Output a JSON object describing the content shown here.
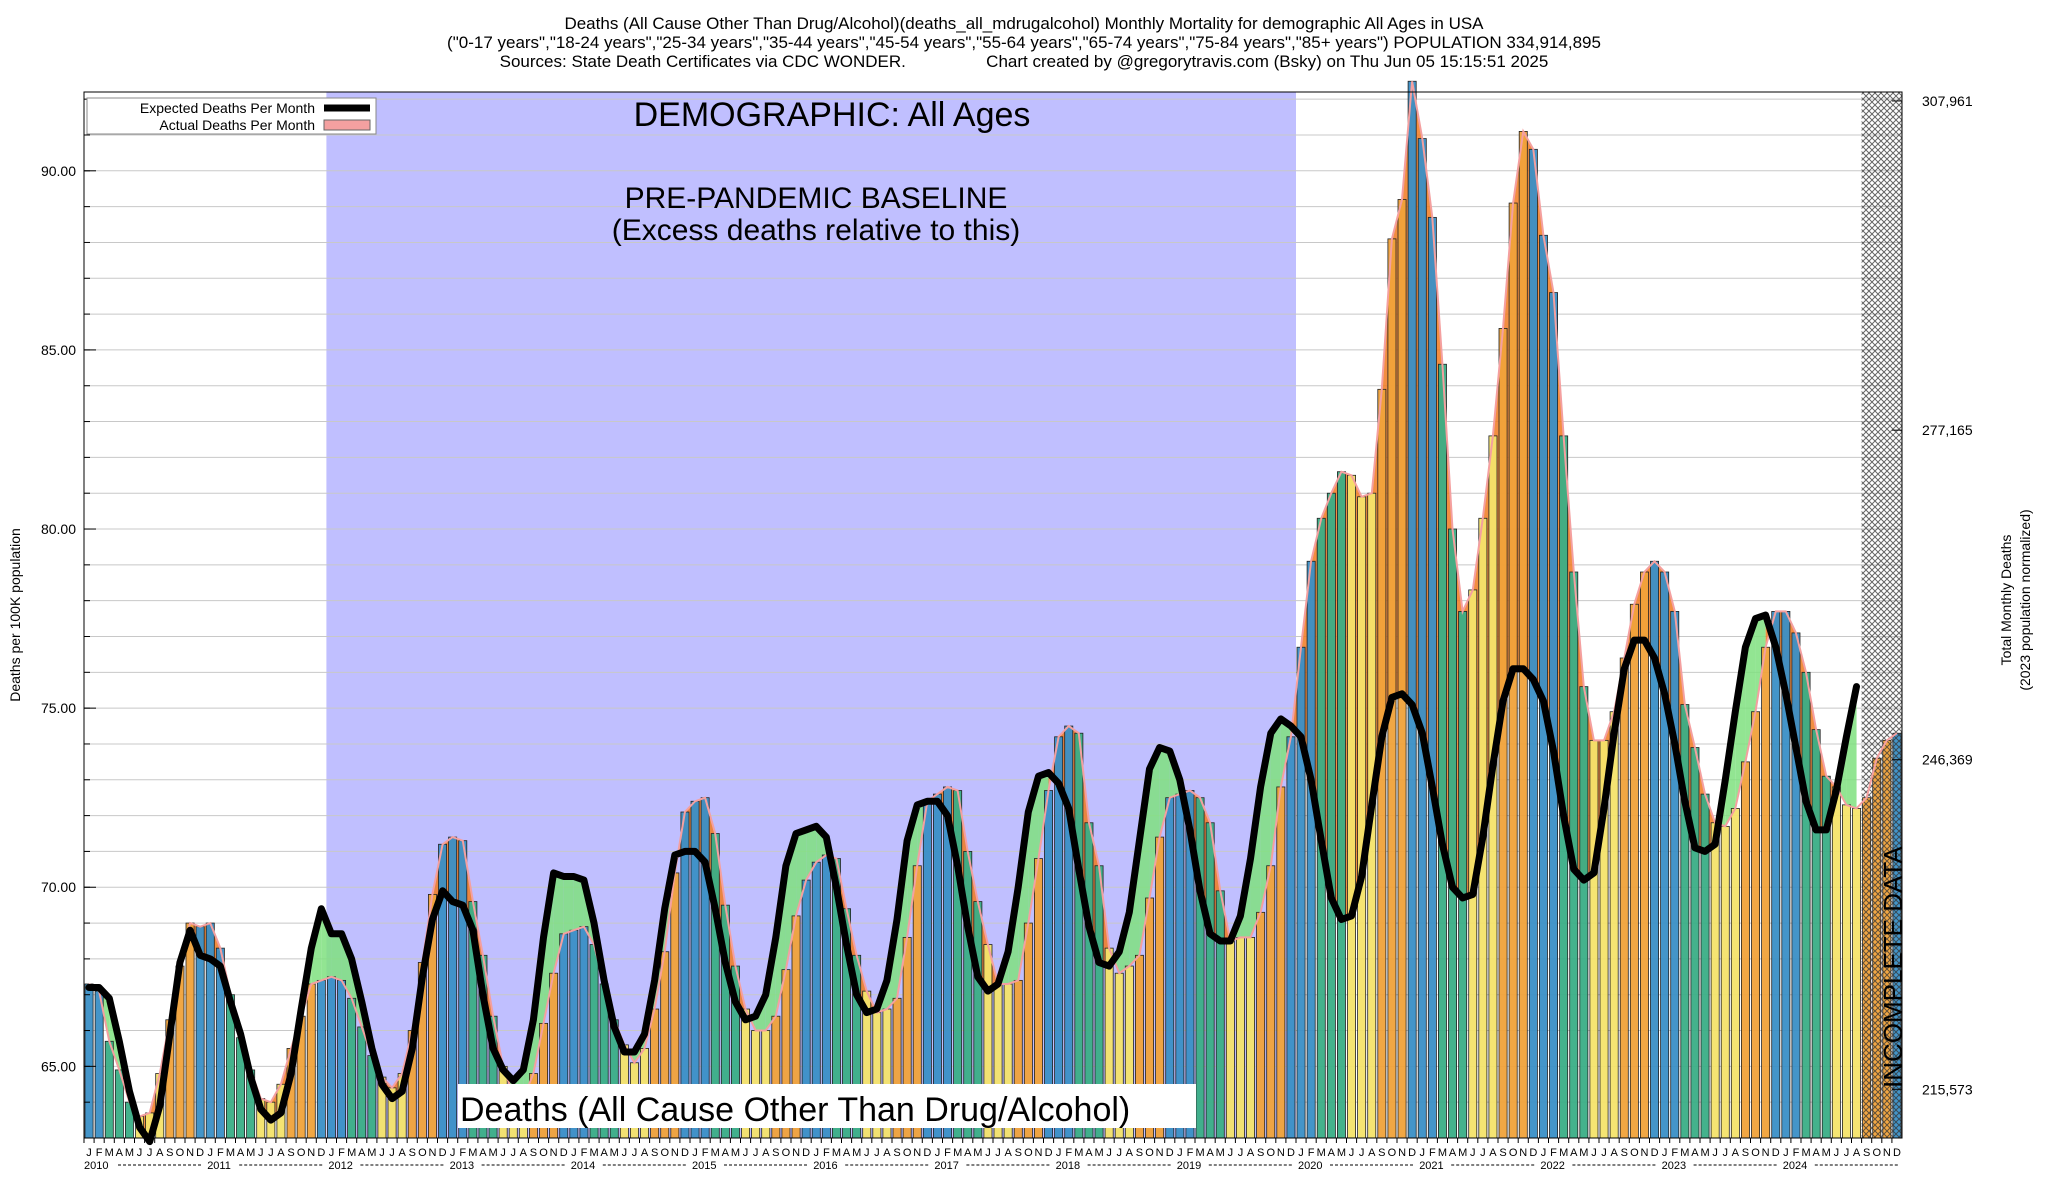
{
  "header": {
    "line1": "Deaths (All Cause Other Than Drug/Alcohol)(deaths_all_mdrugalcohol) Monthly Mortality for demographic All Ages in USA",
    "line2": "(\"0-17 years\",\"18-24 years\",\"25-34 years\",\"35-44 years\",\"45-54 years\",\"55-64 years\",\"65-74 years\",\"75-84 years\",\"85+ years\") POPULATION 334,914,895",
    "line3": "Sources: State Death Certificates via CDC WONDER.                 Chart created by @gregorytravis.com (Bsky) on Thu Jun 05 15:15:51 2025"
  },
  "colors": {
    "baseline_fill": "#c0bfff",
    "expected_line": "#000000",
    "actual_band": "#f4a0a0",
    "excess_positive": "#f07a20",
    "excess_negative": "#7fe07f",
    "bar_winter": "#3a8fc6",
    "bar_spring": "#3aae86",
    "bar_summer": "#f4e36a",
    "bar_fall": "#f0a23a"
  },
  "chart_data": {
    "type": "bar",
    "title": "Deaths (All Cause Other Than Drug/Alcohol)(deaths_all_mdrugalcohol) Monthly Mortality for demographic All Ages in USA",
    "ylabel": "Deaths per 100K population",
    "ylabel_right_1": "Total Monthly Deaths",
    "ylabel_right_2": "(2023 population normalized)",
    "ylim": [
      63.0,
      92.2
    ],
    "y_ticks": [
      65.0,
      70.0,
      75.0,
      80.0,
      85.0,
      90.0
    ],
    "y_tick_labels": [
      "65.00",
      "70.00",
      "75.00",
      "80.00",
      "85.00",
      "90.00"
    ],
    "right_ticks": [
      {
        "value": 64.36,
        "label": "215,573"
      },
      {
        "value": 73.56,
        "label": "246,369"
      },
      {
        "value": 82.76,
        "label": "277,165"
      },
      {
        "value": 91.95,
        "label": "307,961"
      }
    ],
    "legend": {
      "position": "top-left",
      "expected": "Expected Deaths Per Month",
      "actual": "Actual Deaths Per Month"
    },
    "annotations": {
      "demographic": "DEMOGRAPHIC: All Ages",
      "baseline_1": "PRE-PANDEMIC BASELINE",
      "baseline_2": "(Excess deaths relative to this)",
      "bottom_label": "Deaths (All Cause Other Than Drug/Alcohol)",
      "incomplete": "INCOMPLETE DATA"
    },
    "baseline_range": [
      "2012-01",
      "2019-12"
    ],
    "incomplete_from": "2024-09",
    "month_letters": [
      "J",
      "F",
      "M",
      "A",
      "M",
      "J",
      "J",
      "A",
      "S",
      "O",
      "N",
      "D"
    ],
    "years": [
      "2010",
      "2011",
      "2012",
      "2013",
      "2014",
      "2015",
      "2016",
      "2017",
      "2018",
      "2019",
      "2020",
      "2021",
      "2022",
      "2023",
      "2024"
    ],
    "start": "2010-01",
    "actual": [
      67.3,
      67.1,
      65.7,
      64.9,
      64.0,
      63.6,
      63.7,
      64.8,
      66.3,
      67.8,
      69.0,
      68.9,
      69.0,
      68.3,
      67.0,
      65.8,
      64.9,
      64.1,
      64.0,
      64.5,
      65.5,
      66.4,
      67.3,
      67.4,
      67.5,
      67.4,
      66.9,
      66.1,
      65.3,
      64.7,
      64.4,
      64.8,
      66.0,
      67.9,
      69.8,
      71.2,
      71.4,
      71.3,
      69.6,
      68.1,
      66.4,
      65.0,
      64.2,
      64.1,
      64.8,
      66.2,
      67.6,
      68.7,
      68.8,
      68.9,
      68.4,
      67.3,
      66.3,
      65.6,
      65.1,
      65.5,
      66.6,
      68.2,
      70.4,
      72.1,
      72.4,
      72.5,
      71.5,
      69.5,
      67.8,
      66.6,
      66.0,
      66.0,
      66.4,
      67.7,
      69.2,
      70.2,
      70.7,
      70.9,
      70.8,
      69.4,
      68.1,
      67.1,
      66.5,
      66.6,
      66.9,
      68.6,
      70.6,
      72.4,
      72.6,
      72.8,
      72.7,
      71.0,
      69.6,
      68.4,
      67.3,
      67.3,
      67.4,
      69.0,
      70.8,
      72.7,
      74.2,
      74.5,
      74.3,
      71.8,
      70.6,
      68.3,
      67.6,
      67.8,
      68.1,
      69.7,
      71.4,
      72.5,
      72.6,
      72.7,
      72.5,
      71.8,
      69.9,
      68.5,
      68.6,
      68.6,
      69.3,
      70.6,
      72.8,
      74.2,
      76.7,
      79.1,
      80.3,
      81.0,
      81.6,
      81.5,
      80.9,
      81.0,
      83.9,
      88.1,
      89.2,
      92.5,
      90.9,
      88.7,
      84.6,
      80.0,
      77.7,
      78.3,
      80.3,
      82.6,
      85.6,
      89.1,
      91.1,
      90.6,
      88.2,
      86.6,
      82.6,
      78.8,
      75.6,
      74.1,
      74.1,
      74.9,
      76.4,
      77.9,
      78.8,
      79.1,
      78.8,
      77.7,
      75.1,
      73.9,
      72.6,
      71.8,
      71.7,
      72.2,
      73.5,
      74.9,
      76.7,
      77.7,
      77.7,
      77.1,
      76.0,
      74.4,
      73.1,
      72.8,
      72.3,
      72.2,
      72.5,
      73.6,
      74.1,
      74.3
    ],
    "expected": [
      67.2,
      67.2,
      66.9,
      65.7,
      64.3,
      63.3,
      62.9,
      63.9,
      65.9,
      67.9,
      68.8,
      68.1,
      68.0,
      67.8,
      66.8,
      65.9,
      64.7,
      63.8,
      63.5,
      63.7,
      64.8,
      66.6,
      68.3,
      69.4,
      68.7,
      68.7,
      68.0,
      66.8,
      65.5,
      64.5,
      64.1,
      64.3,
      65.5,
      67.5,
      69.1,
      69.9,
      69.6,
      69.5,
      68.8,
      67.0,
      65.5,
      64.9,
      64.6,
      64.9,
      66.3,
      68.6,
      70.4,
      70.3,
      70.3,
      70.2,
      69.0,
      67.4,
      66.1,
      65.4,
      65.4,
      65.9,
      67.4,
      69.4,
      70.9,
      71.0,
      71.0,
      70.7,
      69.4,
      67.9,
      66.8,
      66.3,
      66.4,
      67.0,
      68.6,
      70.6,
      71.5,
      71.6,
      71.7,
      71.4,
      70.0,
      68.4,
      67.0,
      66.5,
      66.6,
      67.4,
      69.1,
      71.3,
      72.3,
      72.4,
      72.4,
      72.0,
      70.6,
      68.9,
      67.5,
      67.1,
      67.3,
      68.2,
      70.0,
      72.1,
      73.1,
      73.2,
      72.9,
      72.2,
      70.5,
      68.9,
      67.9,
      67.8,
      68.2,
      69.3,
      71.3,
      73.3,
      73.9,
      73.8,
      73.0,
      71.6,
      69.9,
      68.7,
      68.5,
      68.5,
      69.2,
      70.8,
      72.8,
      74.3,
      74.7,
      74.5,
      74.2,
      73.0,
      71.3,
      69.7,
      69.1,
      69.2,
      70.3,
      72.3,
      74.2,
      75.3,
      75.4,
      75.1,
      74.3,
      72.8,
      71.2,
      70.0,
      69.7,
      69.8,
      71.4,
      73.4,
      75.2,
      76.1,
      76.1,
      75.8,
      75.2,
      73.8,
      72.0,
      70.5,
      70.2,
      70.4,
      72.2,
      74.3,
      76.1,
      76.9,
      76.9,
      76.4,
      75.4,
      74.0,
      72.4,
      71.1,
      71.0,
      71.2,
      73.0,
      74.9,
      76.7,
      77.5,
      77.6,
      76.7,
      75.4,
      73.9,
      72.4,
      71.6,
      71.6,
      72.7,
      74.2,
      75.6
    ]
  }
}
